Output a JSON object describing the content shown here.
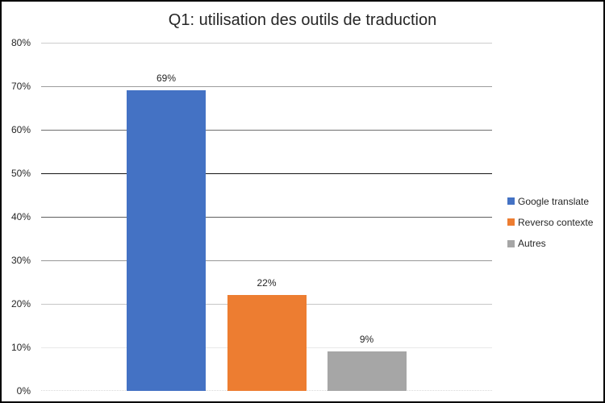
{
  "chart_data": {
    "type": "bar",
    "title": "Q1: utilisation des outils de traduction",
    "categories": [
      "Google translate",
      "Reverso contexte",
      "Autres"
    ],
    "values": [
      69,
      22,
      9
    ],
    "value_labels": [
      "69%",
      "22%",
      "9%"
    ],
    "bar_colors": [
      "#4472C4",
      "#ED7D31",
      "#A6A6A6"
    ],
    "xlabel": "",
    "ylabel": "",
    "ylim": [
      0,
      80
    ],
    "ytick_labels": [
      "0%",
      "10%",
      "20%",
      "30%",
      "40%",
      "50%",
      "60%",
      "70%",
      "80%"
    ],
    "grid": true,
    "legend_position": "right",
    "legend": [
      {
        "label": "Google translate",
        "color": "#4472C4"
      },
      {
        "label": "Reverso contexte",
        "color": "#ED7D31"
      },
      {
        "label": "Autres",
        "color": "#A6A6A6"
      }
    ],
    "gridline_colors_10_to_80": [
      "#e9e9e9",
      "#c6c6c6",
      "#989898",
      "#5f5f5f",
      "#161616",
      "#6f6f6f",
      "#9d9d9d",
      "#cdcdcd"
    ],
    "axis_line_color": "#d9d9d9",
    "text_color": "#262626",
    "background_color": "#ffffff",
    "border_color": "#000000"
  }
}
